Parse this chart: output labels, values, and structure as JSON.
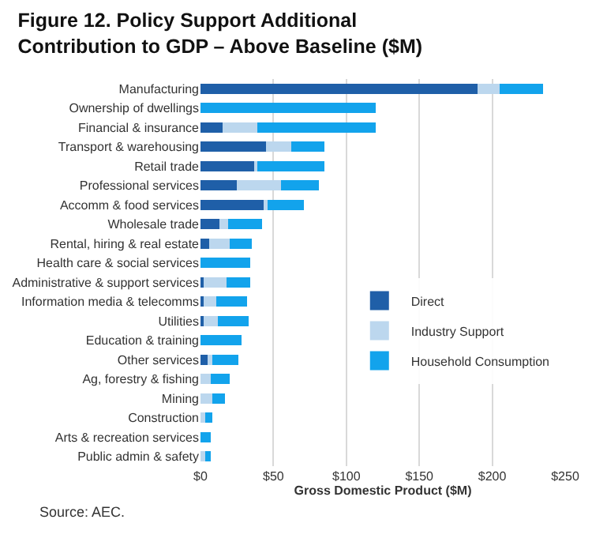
{
  "chart_data": {
    "type": "bar",
    "orientation": "horizontal",
    "stacked": true,
    "title": "Figure 12. Policy Support Additional Contribution to GDP – Above Baseline ($M)",
    "xlabel": "Gross Domestic Product ($M)",
    "categories": [
      "Manufacturing",
      "Ownership of dwellings",
      "Financial & insurance",
      "Transport & warehousing",
      "Retail trade",
      "Professional services",
      "Accomm & food services",
      "Wholesale trade",
      "Rental, hiring & real estate",
      "Health care & social services",
      "Administrative & support services",
      "Information media & telecomms",
      "Utilities",
      "Education & training",
      "Other services",
      "Ag, forestry & fishing",
      "Mining",
      "Construction",
      "Arts & recreation services",
      "Public admin & safety"
    ],
    "series": [
      {
        "name": "Direct",
        "color": "#1f5fa8",
        "values": [
          190,
          0,
          15,
          45,
          37,
          25,
          44,
          13,
          6,
          0,
          2,
          2,
          2,
          0,
          5,
          0,
          0,
          0,
          0,
          0
        ]
      },
      {
        "name": "Industry Support",
        "color": "#bcd7ee",
        "values": [
          15,
          0,
          24,
          17,
          2,
          30,
          2,
          6,
          14,
          0,
          16,
          9,
          10,
          0,
          3,
          7,
          8,
          3,
          0,
          3
        ]
      },
      {
        "name": "Household Consumption",
        "color": "#12a3ec",
        "values": [
          30,
          120,
          81,
          23,
          46,
          26,
          25,
          23,
          15,
          34,
          16,
          21,
          21,
          28,
          18,
          13,
          9,
          5,
          7,
          4
        ]
      }
    ],
    "xlim": [
      0,
      250
    ],
    "xticks": [
      {
        "value": 0,
        "label": "$0"
      },
      {
        "value": 50,
        "label": "$50"
      },
      {
        "value": 100,
        "label": "$100"
      },
      {
        "value": 150,
        "label": "$150"
      },
      {
        "value": 200,
        "label": "$200"
      },
      {
        "value": 250,
        "label": "$250"
      }
    ],
    "grid": "x",
    "legend": "right",
    "annotations": [
      "Source: AEC."
    ]
  }
}
